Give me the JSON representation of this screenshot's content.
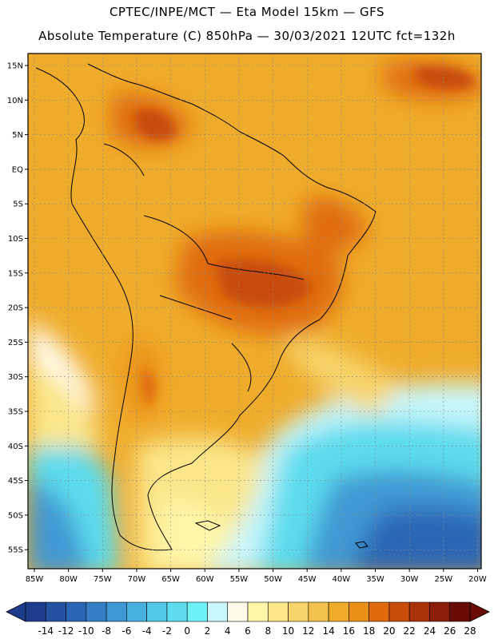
{
  "header": {
    "line1": "CPTEC/INPE/MCT —  Eta Model 15km — GFS",
    "line2": "Absolute Temperature (C) 850hPa — 30/03/2021 12UTC fct=132h"
  },
  "map": {
    "lat_labels": [
      "15N",
      "10N",
      "5N",
      "EQ",
      "5S",
      "10S",
      "15S",
      "20S",
      "25S",
      "30S",
      "35S",
      "40S",
      "45S",
      "50S",
      "55S"
    ],
    "lon_labels": [
      "85W",
      "80W",
      "75W",
      "70W",
      "65W",
      "60W",
      "55W",
      "50W",
      "45W",
      "40W",
      "35W",
      "30W",
      "25W",
      "20W"
    ]
  },
  "colorbar": {
    "labels": [
      "-14",
      "-12",
      "-10",
      "-8",
      "-6",
      "-4",
      "-2",
      "0",
      "2",
      "4",
      "6",
      "8",
      "10",
      "12",
      "14",
      "16",
      "18",
      "20",
      "22",
      "24",
      "26",
      "28"
    ],
    "colors": [
      "#1e3c8c",
      "#2451a0",
      "#2b66b4",
      "#357fc6",
      "#3f98d4",
      "#48b0de",
      "#52c7e6",
      "#5cdcee",
      "#6ef2f8",
      "#c8f6fc",
      "#fffaea",
      "#fff6a8",
      "#fbe68a",
      "#f7d46a",
      "#f3c24c",
      "#efac2c",
      "#ea9018",
      "#e06a0c",
      "#c84c0a",
      "#aa3208",
      "#8a1e08",
      "#6a0c06"
    ]
  }
}
